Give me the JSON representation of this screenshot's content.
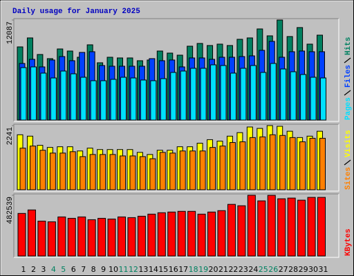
{
  "title": "Daily usage for January 2025",
  "chart_data": [
    {
      "type": "bar",
      "ylim": [
        0,
        12087
      ],
      "yticks": [
        12087
      ],
      "series": [
        {
          "name": "Hits",
          "color": "#008060",
          "values": [
            8840,
            9925,
            7923,
            7423,
            8590,
            8340,
            7589,
            9091,
            6922,
            7589,
            7506,
            7506,
            7172,
            7256,
            8340,
            8090,
            7840,
            8924,
            9257,
            9007,
            9174,
            9007,
            9758,
            9925,
            11009,
            10175,
            12087,
            10091,
            11176,
            9174,
            10258
          ]
        },
        {
          "name": "Files",
          "color": "#0040ff",
          "values": [
            6839,
            7339,
            6422,
            7256,
            7673,
            7172,
            8173,
            8257,
            6589,
            6505,
            6505,
            6505,
            6505,
            7423,
            7172,
            7256,
            6422,
            7506,
            7506,
            7339,
            7589,
            7589,
            7673,
            7756,
            8423,
            9508,
            7589,
            8257,
            8340,
            8257,
            8257
          ]
        },
        {
          "name": "Pages",
          "color": "#00e0ff",
          "values": [
            6338,
            6422,
            5671,
            5087,
            5921,
            5588,
            5171,
            4754,
            4754,
            4921,
            5171,
            5087,
            4837,
            4754,
            5004,
            5755,
            5921,
            6255,
            6255,
            6672,
            6589,
            5671,
            6255,
            6589,
            5755,
            6839,
            6172,
            5838,
            5504,
            5171,
            5087
          ]
        }
      ]
    },
    {
      "type": "bar",
      "ylim": [
        0,
        2241
      ],
      "yticks": [
        2241
      ],
      "series": [
        {
          "name": "Visits",
          "color": "#ffff00",
          "values": [
            1921,
            1872,
            1552,
            1478,
            1502,
            1502,
            1355,
            1453,
            1404,
            1404,
            1404,
            1404,
            1305,
            1232,
            1379,
            1379,
            1502,
            1502,
            1626,
            1749,
            1699,
            1872,
            1995,
            2192,
            2143,
            2241,
            2217,
            2044,
            1823,
            1872,
            2044
          ]
        },
        {
          "name": "Sites",
          "color": "#ff8000",
          "values": [
            1453,
            1527,
            1379,
            1281,
            1281,
            1330,
            1158,
            1232,
            1232,
            1232,
            1182,
            1182,
            1158,
            1084,
            1305,
            1281,
            1355,
            1355,
            1355,
            1478,
            1527,
            1650,
            1675,
            1823,
            1847,
            1921,
            1897,
            1823,
            1675,
            1798,
            1798
          ]
        }
      ]
    },
    {
      "type": "bar",
      "ylim": [
        0,
        482539
      ],
      "yticks": [
        482539
      ],
      "categories": [
        "1",
        "2",
        "3",
        "4",
        "5",
        "6",
        "7",
        "8",
        "9",
        "10",
        "11",
        "12",
        "13",
        "14",
        "15",
        "16",
        "17",
        "18",
        "19",
        "20",
        "21",
        "22",
        "23",
        "24",
        "25",
        "26",
        "27",
        "28",
        "29",
        "30",
        "31"
      ],
      "category_colors": [
        "#000000",
        "#000000",
        "#000000",
        "#008060",
        "#008060",
        "#000000",
        "#000000",
        "#000000",
        "#000000",
        "#000000",
        "#008060",
        "#008060",
        "#000000",
        "#000000",
        "#000000",
        "#000000",
        "#000000",
        "#008060",
        "#008060",
        "#000000",
        "#000000",
        "#000000",
        "#000000",
        "#000000",
        "#008060",
        "#008060",
        "#000000",
        "#000000",
        "#000000",
        "#000000",
        "#000000"
      ],
      "series": [
        {
          "name": "KBytes",
          "color": "#ff0000",
          "values": [
            338311,
            366041,
            277300,
            271754,
            310576,
            299484,
            310576,
            288392,
            299484,
            293938,
            310576,
            305030,
            316122,
            332760,
            343852,
            349398,
            354944,
            354944,
            332760,
            349398,
            360490,
            410404,
            399312,
            482539,
            438134,
            482000,
            454772,
            460318,
            443680,
            465864,
            465864
          ]
        }
      ]
    }
  ]
}
